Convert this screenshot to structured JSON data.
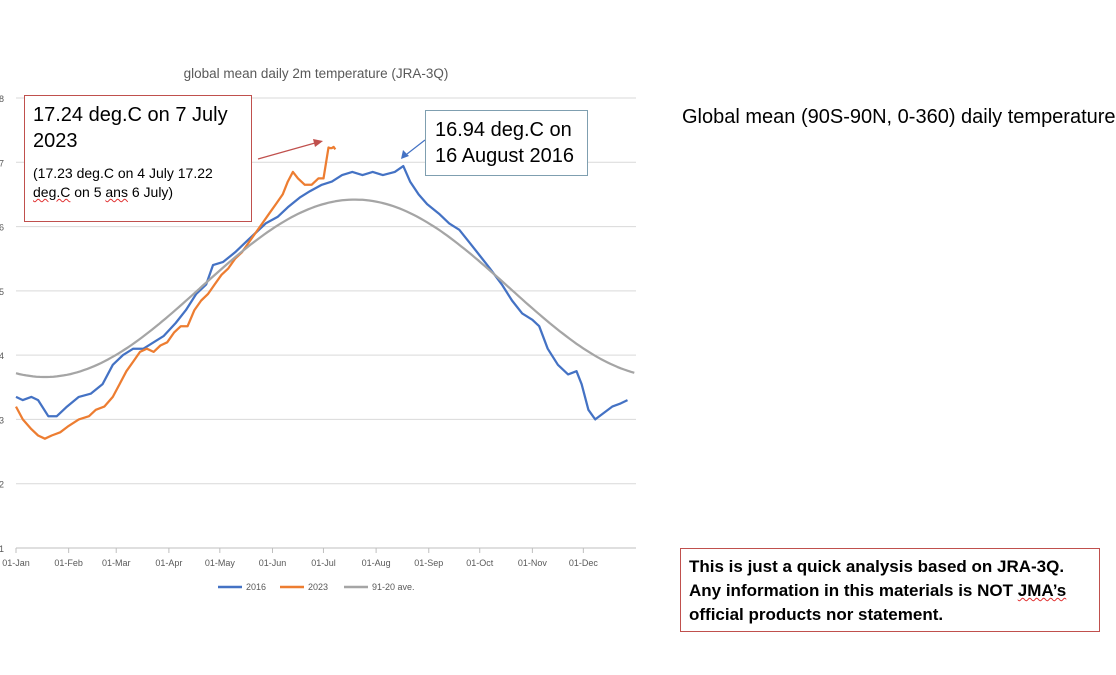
{
  "chart_data": {
    "type": "line",
    "title": "global mean daily 2m temperature (JRA-3Q)",
    "xlabel": "",
    "ylabel": "",
    "ylim": [
      11,
      18
    ],
    "y_ticks": [
      "1",
      "2",
      "3",
      "4",
      "5",
      "6",
      "7",
      "8"
    ],
    "x_ticks": [
      "01-Jan",
      "01-Feb",
      "01-Mar",
      "01-Apr",
      "01-May",
      "01-Jun",
      "01-Jul",
      "01-Aug",
      "01-Sep",
      "01-Oct",
      "01-Nov",
      "01-Dec"
    ],
    "legend_position": "bottom",
    "series": [
      {
        "name": "2016",
        "color": "#4472c4",
        "points": [
          [
            1,
            13.35
          ],
          [
            5,
            13.3
          ],
          [
            10,
            13.35
          ],
          [
            14,
            13.3
          ],
          [
            20,
            13.05
          ],
          [
            25,
            13.05
          ],
          [
            31,
            13.2
          ],
          [
            38,
            13.35
          ],
          [
            45,
            13.4
          ],
          [
            52,
            13.55
          ],
          [
            58,
            13.85
          ],
          [
            64,
            14.0
          ],
          [
            70,
            14.1
          ],
          [
            76,
            14.1
          ],
          [
            82,
            14.2
          ],
          [
            88,
            14.3
          ],
          [
            95,
            14.5
          ],
          [
            101,
            14.7
          ],
          [
            107,
            14.95
          ],
          [
            113,
            15.1
          ],
          [
            117,
            15.4
          ],
          [
            123,
            15.45
          ],
          [
            130,
            15.6
          ],
          [
            136,
            15.75
          ],
          [
            142,
            15.9
          ],
          [
            148,
            16.05
          ],
          [
            155,
            16.15
          ],
          [
            161,
            16.3
          ],
          [
            168,
            16.45
          ],
          [
            174,
            16.55
          ],
          [
            181,
            16.65
          ],
          [
            187,
            16.7
          ],
          [
            193,
            16.8
          ],
          [
            199,
            16.85
          ],
          [
            205,
            16.8
          ],
          [
            211,
            16.85
          ],
          [
            217,
            16.8
          ],
          [
            224,
            16.85
          ],
          [
            229,
            16.94
          ],
          [
            233,
            16.7
          ],
          [
            238,
            16.5
          ],
          [
            243,
            16.35
          ],
          [
            250,
            16.2
          ],
          [
            256,
            16.05
          ],
          [
            262,
            15.95
          ],
          [
            268,
            15.75
          ],
          [
            274,
            15.55
          ],
          [
            280,
            15.35
          ],
          [
            287,
            15.1
          ],
          [
            293,
            14.85
          ],
          [
            299,
            14.65
          ],
          [
            305,
            14.55
          ],
          [
            309,
            14.45
          ],
          [
            314,
            14.1
          ],
          [
            320,
            13.85
          ],
          [
            326,
            13.7
          ],
          [
            331,
            13.75
          ],
          [
            334,
            13.55
          ],
          [
            338,
            13.15
          ],
          [
            342,
            13.0
          ],
          [
            347,
            13.1
          ],
          [
            352,
            13.2
          ],
          [
            357,
            13.25
          ],
          [
            361,
            13.3
          ]
        ]
      },
      {
        "name": "2023",
        "color": "#ed7d31",
        "points": [
          [
            1,
            13.2
          ],
          [
            5,
            13.0
          ],
          [
            10,
            12.85
          ],
          [
            14,
            12.75
          ],
          [
            18,
            12.7
          ],
          [
            22,
            12.75
          ],
          [
            27,
            12.8
          ],
          [
            32,
            12.9
          ],
          [
            38,
            13.0
          ],
          [
            44,
            13.05
          ],
          [
            48,
            13.15
          ],
          [
            53,
            13.2
          ],
          [
            58,
            13.35
          ],
          [
            62,
            13.55
          ],
          [
            66,
            13.75
          ],
          [
            70,
            13.9
          ],
          [
            74,
            14.05
          ],
          [
            78,
            14.1
          ],
          [
            82,
            14.05
          ],
          [
            86,
            14.15
          ],
          [
            90,
            14.2
          ],
          [
            94,
            14.35
          ],
          [
            98,
            14.45
          ],
          [
            102,
            14.45
          ],
          [
            106,
            14.7
          ],
          [
            110,
            14.85
          ],
          [
            114,
            14.95
          ],
          [
            118,
            15.1
          ],
          [
            122,
            15.25
          ],
          [
            126,
            15.35
          ],
          [
            130,
            15.5
          ],
          [
            134,
            15.6
          ],
          [
            138,
            15.75
          ],
          [
            142,
            15.9
          ],
          [
            146,
            16.05
          ],
          [
            150,
            16.2
          ],
          [
            154,
            16.35
          ],
          [
            158,
            16.5
          ],
          [
            161,
            16.7
          ],
          [
            164,
            16.85
          ],
          [
            167,
            16.75
          ],
          [
            171,
            16.65
          ],
          [
            175,
            16.65
          ],
          [
            179,
            16.75
          ],
          [
            182,
            16.75
          ],
          [
            185,
            17.23
          ],
          [
            186,
            17.22
          ],
          [
            187,
            17.22
          ],
          [
            188,
            17.24
          ],
          [
            189,
            17.2
          ]
        ]
      },
      {
        "name": "91-20 ave.",
        "color": "#a5a5a5",
        "formula": "15.04 - 1.38 * cos(2*pi*(day - 18)/365)"
      }
    ]
  },
  "annotations": {
    "peak_2023": {
      "text_a": "17.24 deg.C on 7 July",
      "text_b": "2023",
      "sub_a": "(17.23 deg.C on 4 July 17.22",
      "sub_b_word": "deg.C",
      "sub_b_rest": " on 5 ",
      "sub_b_typo": "ans",
      "sub_b_end": " 6 July)",
      "word_degc": "deg.C",
      "color": "#c0504d"
    },
    "peak_2016": {
      "text_a": "16.94 deg.C on",
      "text_b": "16 August 2016",
      "color": "#4472c4"
    }
  },
  "side_title": "Global mean (90S-90N, 0-360) daily temperature",
  "disclaimer": {
    "line1": "This is just a quick analysis based on JRA-3Q.",
    "line2_a": "Any information in this materials is NOT ",
    "line2_b": "JMA’s",
    "line3": "official products nor statement."
  }
}
